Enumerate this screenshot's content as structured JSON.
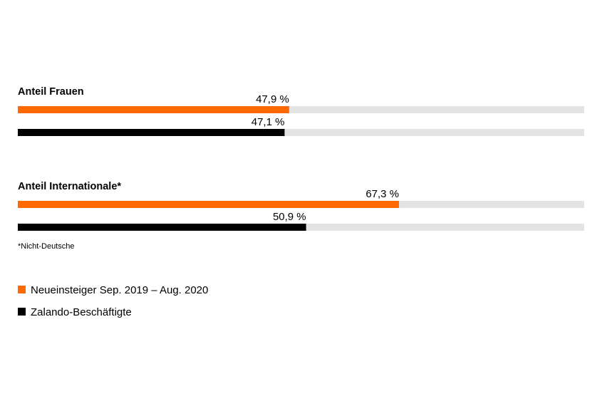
{
  "chart_data": {
    "type": "bar",
    "orientation": "horizontal",
    "xlim": [
      0,
      100
    ],
    "colors": {
      "new_hires": "#ff6900",
      "employees": "#000000",
      "track": "#e3e3e3"
    },
    "groups": [
      {
        "title": "Anteil Frauen",
        "values": [
          47.9,
          47.1
        ],
        "labels": [
          "47,9 %",
          "47,1 %"
        ]
      },
      {
        "title": "Anteil Internationale*",
        "values": [
          67.3,
          50.9
        ],
        "labels": [
          "67,3 %",
          "50,9 %"
        ]
      }
    ],
    "series": [
      {
        "name": "Neueinsteiger Sep. 2019 – Aug. 2020",
        "color": "#ff6900"
      },
      {
        "name": "Zalando-Beschäftigte",
        "color": "#000000"
      }
    ],
    "footnote": "*Nicht-Deutsche",
    "legend_position": "bottom-left"
  }
}
